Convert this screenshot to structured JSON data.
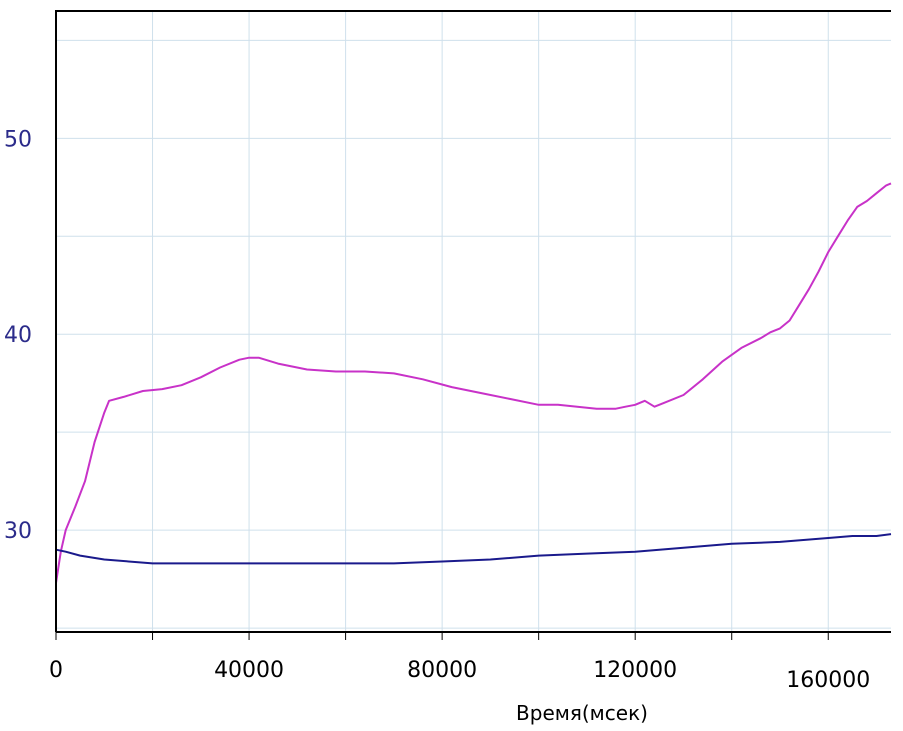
{
  "chart_data": {
    "type": "line",
    "title": "",
    "xlabel": "Время(мсек)",
    "ylabel": "",
    "xlim": [
      0,
      173000
    ],
    "ylim": [
      24.8,
      56.5
    ],
    "grid": true,
    "x_ticks": [
      0,
      40000,
      80000,
      120000,
      160000
    ],
    "x_tick_labels": [
      "0",
      "40000",
      "80000",
      "120000",
      "160000"
    ],
    "y_ticks": [
      30,
      40,
      50
    ],
    "y_tick_labels": [
      "30",
      "40",
      "50"
    ],
    "series": [
      {
        "color": "#c832c8",
        "x": [
          0,
          1000,
          2000,
          4000,
          6000,
          8000,
          10000,
          11000,
          14000,
          18000,
          22000,
          26000,
          30000,
          34000,
          38000,
          40000,
          42000,
          46000,
          52000,
          58000,
          64000,
          70000,
          76000,
          82000,
          88000,
          94000,
          100000,
          104000,
          108000,
          112000,
          116000,
          118000,
          120000,
          122000,
          124000,
          126000,
          130000,
          134000,
          138000,
          142000,
          146000,
          148000,
          150000,
          152000,
          154000,
          156000,
          158000,
          160000,
          162000,
          164000,
          166000,
          168000,
          170000,
          172000,
          173000
        ],
        "y": [
          27.3,
          28.9,
          30.0,
          31.2,
          32.5,
          34.5,
          36.0,
          36.6,
          36.8,
          37.1,
          37.2,
          37.4,
          37.8,
          38.3,
          38.7,
          38.8,
          38.8,
          38.5,
          38.2,
          38.1,
          38.1,
          38.0,
          37.7,
          37.3,
          37.0,
          36.7,
          36.4,
          36.4,
          36.3,
          36.2,
          36.2,
          36.3,
          36.4,
          36.6,
          36.3,
          36.5,
          36.9,
          37.7,
          38.6,
          39.3,
          39.8,
          40.1,
          40.3,
          40.7,
          41.5,
          42.3,
          43.2,
          44.2,
          45.0,
          45.8,
          46.5,
          46.8,
          47.2,
          47.6,
          47.7
        ]
      },
      {
        "color": "#1a1a8c",
        "x": [
          0,
          2000,
          5000,
          10000,
          20000,
          30000,
          40000,
          50000,
          60000,
          70000,
          80000,
          90000,
          100000,
          110000,
          120000,
          130000,
          140000,
          150000,
          160000,
          165000,
          170000,
          173000
        ],
        "y": [
          29.0,
          28.9,
          28.7,
          28.5,
          28.3,
          28.3,
          28.3,
          28.3,
          28.3,
          28.3,
          28.4,
          28.5,
          28.7,
          28.8,
          28.9,
          29.1,
          29.3,
          29.4,
          29.6,
          29.7,
          29.7,
          29.8
        ]
      }
    ]
  }
}
